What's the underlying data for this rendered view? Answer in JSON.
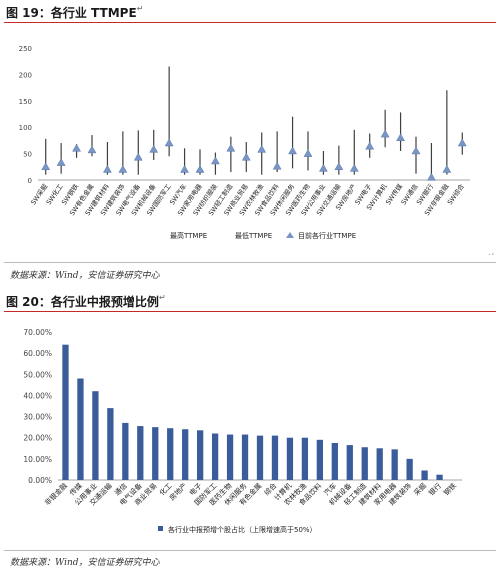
{
  "fig19": {
    "title": "图 19：各行业 TTMPE",
    "source": "数据来源：Wind，安信证券研究中心"
  },
  "fig20": {
    "title": "图 20：各行业中报预增比例",
    "source": "数据来源：Wind，安信证券研究中心"
  },
  "colors": {
    "bar": "#3a5c9a",
    "range_line": "#404040",
    "marker": "#7a96c6",
    "rule": "#c62828"
  },
  "chart_data": [
    {
      "type": "range",
      "categories": [
        "SW采掘",
        "SW化工",
        "SW钢铁",
        "SW有色金属",
        "SW建筑材料",
        "SW建筑装饰",
        "SW电气设备",
        "SW机械设备",
        "SW国防军工",
        "SW汽车",
        "SW家用电器",
        "SW纺织服装",
        "SW轻工制造",
        "SW商业贸易",
        "SW农林牧渔",
        "SW食品饮料",
        "SW休闲服务",
        "SW医药生物",
        "SW公用事业",
        "SW交通运输",
        "SW房地产",
        "SW电子",
        "SW计算机",
        "SW传媒",
        "SW通信",
        "SW银行",
        "SW非银金融",
        "SW综合"
      ],
      "series": [
        {
          "name": "最高TTMPE",
          "values": [
            78,
            70,
            68,
            85,
            72,
            92,
            94,
            95,
            215,
            60,
            58,
            52,
            82,
            72,
            90,
            92,
            120,
            92,
            55,
            65,
            95,
            88,
            133,
            128,
            82,
            70,
            170,
            90
          ]
        },
        {
          "name": "最低TTMPE",
          "values": [
            10,
            12,
            42,
            45,
            10,
            10,
            10,
            38,
            45,
            10,
            10,
            10,
            15,
            15,
            10,
            15,
            22,
            18,
            10,
            10,
            10,
            42,
            62,
            55,
            12,
            3,
            10,
            48
          ]
        },
        {
          "name": "目前各行业TTMPE",
          "values": [
            25,
            33,
            60,
            57,
            20,
            20,
            43,
            58,
            70,
            20,
            20,
            36,
            60,
            43,
            58,
            26,
            55,
            50,
            22,
            25,
            22,
            64,
            87,
            80,
            55,
            5,
            20,
            70
          ]
        }
      ],
      "ylim": [
        0,
        250
      ],
      "yticks": [
        0,
        50,
        100,
        150,
        200,
        250
      ],
      "legend": "bottom"
    },
    {
      "type": "bar",
      "categories": [
        "非银金融",
        "传媒",
        "公用事业",
        "交通运输",
        "通信",
        "电气设备",
        "商业贸易",
        "化工",
        "房地产",
        "电子",
        "国防军工",
        "医药生物",
        "休闲服务",
        "有色金属",
        "综合",
        "计算机",
        "农林牧渔",
        "食品饮料",
        "汽车",
        "机械设备",
        "轻工制造",
        "建筑材料",
        "家用电器",
        "建筑装饰",
        "采掘",
        "银行",
        "钢铁"
      ],
      "values": [
        64.0,
        48.0,
        42.0,
        34.0,
        27.0,
        25.5,
        25.0,
        24.5,
        24.0,
        23.5,
        22.0,
        21.5,
        21.5,
        21.0,
        21.0,
        20.0,
        20.0,
        19.0,
        17.5,
        16.5,
        15.5,
        15.0,
        14.5,
        10.0,
        4.5,
        2.5,
        0.0
      ],
      "ylim": [
        0,
        70
      ],
      "yticks": [
        "0.00%",
        "10.00%",
        "20.00%",
        "30.00%",
        "40.00%",
        "50.00%",
        "60.00%",
        "70.00%"
      ],
      "series": [
        {
          "name": "各行业中报预增个股占比（上限增速高于50%）"
        }
      ],
      "legend": "bottom"
    }
  ],
  "marks": {
    "title_arrow": "↵",
    "corner_arrow": "↵"
  }
}
